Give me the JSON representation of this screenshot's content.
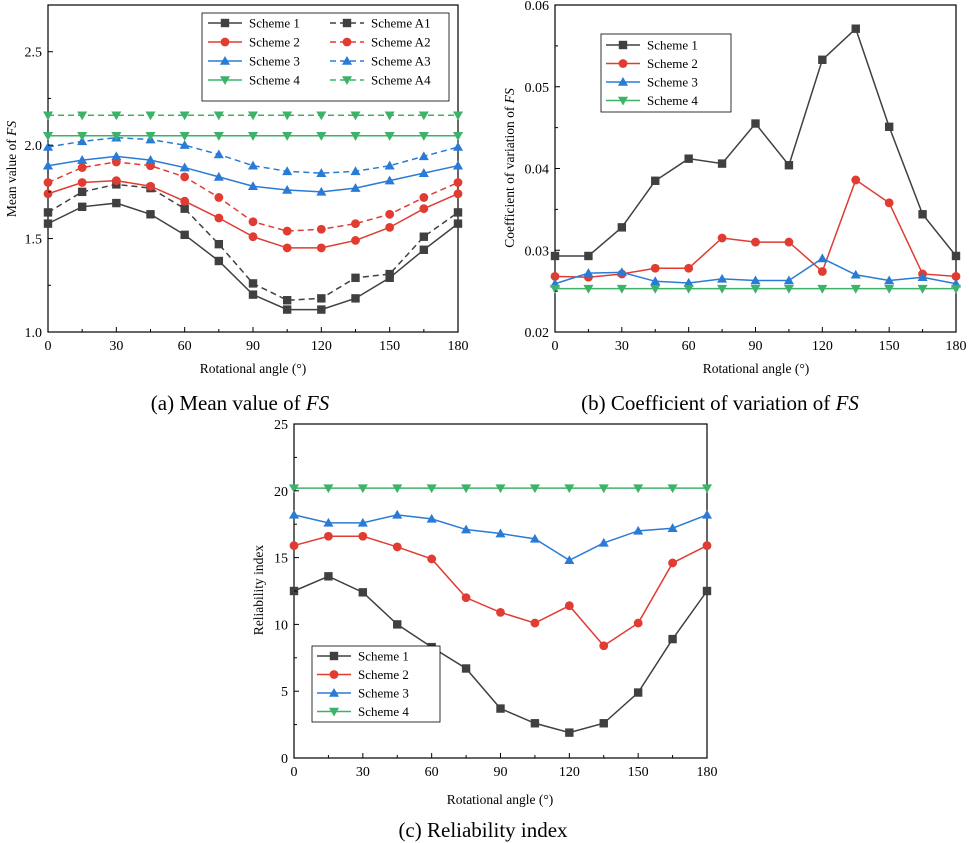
{
  "figure": {
    "captions": {
      "a_prefix": "(a) Mean value of ",
      "a_term": "FS",
      "b_prefix": "(b) Coefficient of variation of ",
      "b_term": "FS",
      "c": "(c) Reliability index"
    }
  },
  "chart_data": [
    {
      "id": "a",
      "type": "line",
      "caption": "(a) Mean value of FS",
      "xlabel": "Rotational angle (°)",
      "ylabel_prefix": "Mean value of ",
      "ylabel_term": "FS",
      "xlim": [
        0,
        180
      ],
      "ylim": [
        1.0,
        2.75
      ],
      "xticks": [
        0,
        30,
        60,
        90,
        120,
        150,
        180
      ],
      "xtick_labels": [
        "0",
        "30",
        "60",
        "90",
        "120",
        "150",
        "180"
      ],
      "yticks": [
        1.0,
        1.5,
        2.0,
        2.5
      ],
      "ytick_labels": [
        "1.0",
        "1.5",
        "2.0",
        "2.5"
      ],
      "legend_position": "top-right",
      "x": [
        0,
        15,
        30,
        45,
        60,
        75,
        90,
        105,
        120,
        135,
        150,
        165,
        180
      ],
      "series": [
        {
          "name": "Scheme 1",
          "color": "#404040",
          "marker": "square",
          "dash": "solid",
          "values": [
            1.58,
            1.67,
            1.69,
            1.63,
            1.52,
            1.38,
            1.2,
            1.12,
            1.12,
            1.18,
            1.29,
            1.44,
            1.58
          ]
        },
        {
          "name": "Scheme A1",
          "color": "#404040",
          "marker": "square",
          "dash": "dashed",
          "values": [
            1.64,
            1.75,
            1.79,
            1.77,
            1.66,
            1.47,
            1.26,
            1.17,
            1.18,
            1.29,
            1.31,
            1.51,
            1.64
          ]
        },
        {
          "name": "Scheme 2",
          "color": "#e03c32",
          "marker": "circle",
          "dash": "solid",
          "values": [
            1.74,
            1.8,
            1.81,
            1.78,
            1.7,
            1.61,
            1.51,
            1.45,
            1.45,
            1.49,
            1.56,
            1.66,
            1.74
          ]
        },
        {
          "name": "Scheme A2",
          "color": "#e03c32",
          "marker": "circle",
          "dash": "dashed",
          "values": [
            1.8,
            1.88,
            1.91,
            1.89,
            1.83,
            1.72,
            1.59,
            1.54,
            1.55,
            1.58,
            1.63,
            1.72,
            1.8
          ]
        },
        {
          "name": "Scheme 3",
          "color": "#2a7bd6",
          "marker": "triangle-up",
          "dash": "solid",
          "values": [
            1.89,
            1.92,
            1.94,
            1.92,
            1.88,
            1.83,
            1.78,
            1.76,
            1.75,
            1.77,
            1.81,
            1.85,
            1.89
          ]
        },
        {
          "name": "Scheme A3",
          "color": "#2a7bd6",
          "marker": "triangle-up",
          "dash": "dashed",
          "values": [
            1.99,
            2.02,
            2.04,
            2.03,
            2.0,
            1.95,
            1.89,
            1.86,
            1.85,
            1.86,
            1.89,
            1.94,
            1.99
          ]
        },
        {
          "name": "Scheme 4",
          "color": "#3db36a",
          "marker": "triangle-down",
          "dash": "solid",
          "values": [
            2.05,
            2.05,
            2.05,
            2.05,
            2.05,
            2.05,
            2.05,
            2.05,
            2.05,
            2.05,
            2.05,
            2.05,
            2.05
          ]
        },
        {
          "name": "Scheme A4",
          "color": "#3db36a",
          "marker": "triangle-down",
          "dash": "dashed",
          "values": [
            2.16,
            2.16,
            2.16,
            2.16,
            2.16,
            2.16,
            2.16,
            2.16,
            2.16,
            2.16,
            2.16,
            2.16,
            2.16
          ]
        }
      ]
    },
    {
      "id": "b",
      "type": "line",
      "caption": "(b) Coefficient of variation of FS",
      "xlabel": "Rotational angle (°)",
      "ylabel_prefix": "Coefficient of variation of ",
      "ylabel_term": "FS",
      "xlim": [
        0,
        180
      ],
      "ylim": [
        0.02,
        0.06
      ],
      "xticks": [
        0,
        30,
        60,
        90,
        120,
        150,
        180
      ],
      "xtick_labels": [
        "0",
        "30",
        "60",
        "90",
        "120",
        "150",
        "180"
      ],
      "yticks": [
        0.02,
        0.03,
        0.04,
        0.05,
        0.06
      ],
      "ytick_labels": [
        "0.02",
        "0.03",
        "0.04",
        "0.05",
        "0.06"
      ],
      "legend_position": "top-left",
      "x": [
        0,
        15,
        30,
        45,
        60,
        75,
        90,
        105,
        120,
        135,
        150,
        165,
        180
      ],
      "series": [
        {
          "name": "Scheme 1",
          "color": "#404040",
          "marker": "square",
          "dash": "solid",
          "values": [
            0.0293,
            0.0293,
            0.0328,
            0.0385,
            0.0412,
            0.0406,
            0.0455,
            0.0404,
            0.0533,
            0.0571,
            0.0451,
            0.0344,
            0.0293
          ]
        },
        {
          "name": "Scheme 2",
          "color": "#e03c32",
          "marker": "circle",
          "dash": "solid",
          "values": [
            0.0268,
            0.0267,
            0.0271,
            0.0278,
            0.0278,
            0.0315,
            0.031,
            0.031,
            0.0274,
            0.0386,
            0.0358,
            0.0271,
            0.0268
          ]
        },
        {
          "name": "Scheme 3",
          "color": "#2a7bd6",
          "marker": "triangle-up",
          "dash": "solid",
          "values": [
            0.0259,
            0.0272,
            0.0273,
            0.0262,
            0.026,
            0.0265,
            0.0263,
            0.0263,
            0.029,
            0.027,
            0.0263,
            0.0267,
            0.0259
          ]
        },
        {
          "name": "Scheme 4",
          "color": "#3db36a",
          "marker": "triangle-down",
          "dash": "solid",
          "values": [
            0.0253,
            0.0253,
            0.0253,
            0.0253,
            0.0253,
            0.0253,
            0.0253,
            0.0253,
            0.0253,
            0.0253,
            0.0253,
            0.0253,
            0.0253
          ]
        }
      ]
    },
    {
      "id": "c",
      "type": "line",
      "caption": "(c) Reliability index",
      "xlabel": "Rotational angle (°)",
      "ylabel": "Reliability index",
      "xlim": [
        0,
        180
      ],
      "ylim": [
        0,
        25
      ],
      "xticks": [
        0,
        30,
        60,
        90,
        120,
        150,
        180
      ],
      "xtick_labels": [
        "0",
        "30",
        "60",
        "90",
        "120",
        "150",
        "180"
      ],
      "yticks": [
        0,
        5,
        10,
        15,
        20,
        25
      ],
      "ytick_labels": [
        "0",
        "5",
        "10",
        "15",
        "20",
        "25"
      ],
      "legend_position": "bottom-left",
      "x": [
        0,
        15,
        30,
        45,
        60,
        75,
        90,
        105,
        120,
        135,
        150,
        165,
        180
      ],
      "series": [
        {
          "name": "Scheme 1",
          "color": "#404040",
          "marker": "square",
          "dash": "solid",
          "values": [
            12.5,
            13.6,
            12.4,
            10.0,
            8.3,
            6.7,
            3.7,
            2.6,
            1.9,
            2.6,
            4.9,
            8.9,
            12.5
          ]
        },
        {
          "name": "Scheme 2",
          "color": "#e03c32",
          "marker": "circle",
          "dash": "solid",
          "values": [
            15.9,
            16.6,
            16.6,
            15.8,
            14.9,
            12.0,
            10.9,
            10.1,
            11.4,
            8.4,
            10.1,
            14.6,
            15.9
          ]
        },
        {
          "name": "Scheme 3",
          "color": "#2a7bd6",
          "marker": "triangle-up",
          "dash": "solid",
          "values": [
            18.2,
            17.6,
            17.6,
            18.2,
            17.9,
            17.1,
            16.8,
            16.4,
            14.8,
            16.1,
            17.0,
            17.2,
            18.2
          ]
        },
        {
          "name": "Scheme 4",
          "color": "#3db36a",
          "marker": "triangle-down",
          "dash": "solid",
          "values": [
            20.2,
            20.2,
            20.2,
            20.2,
            20.2,
            20.2,
            20.2,
            20.2,
            20.2,
            20.2,
            20.2,
            20.2,
            20.2
          ]
        }
      ]
    }
  ]
}
